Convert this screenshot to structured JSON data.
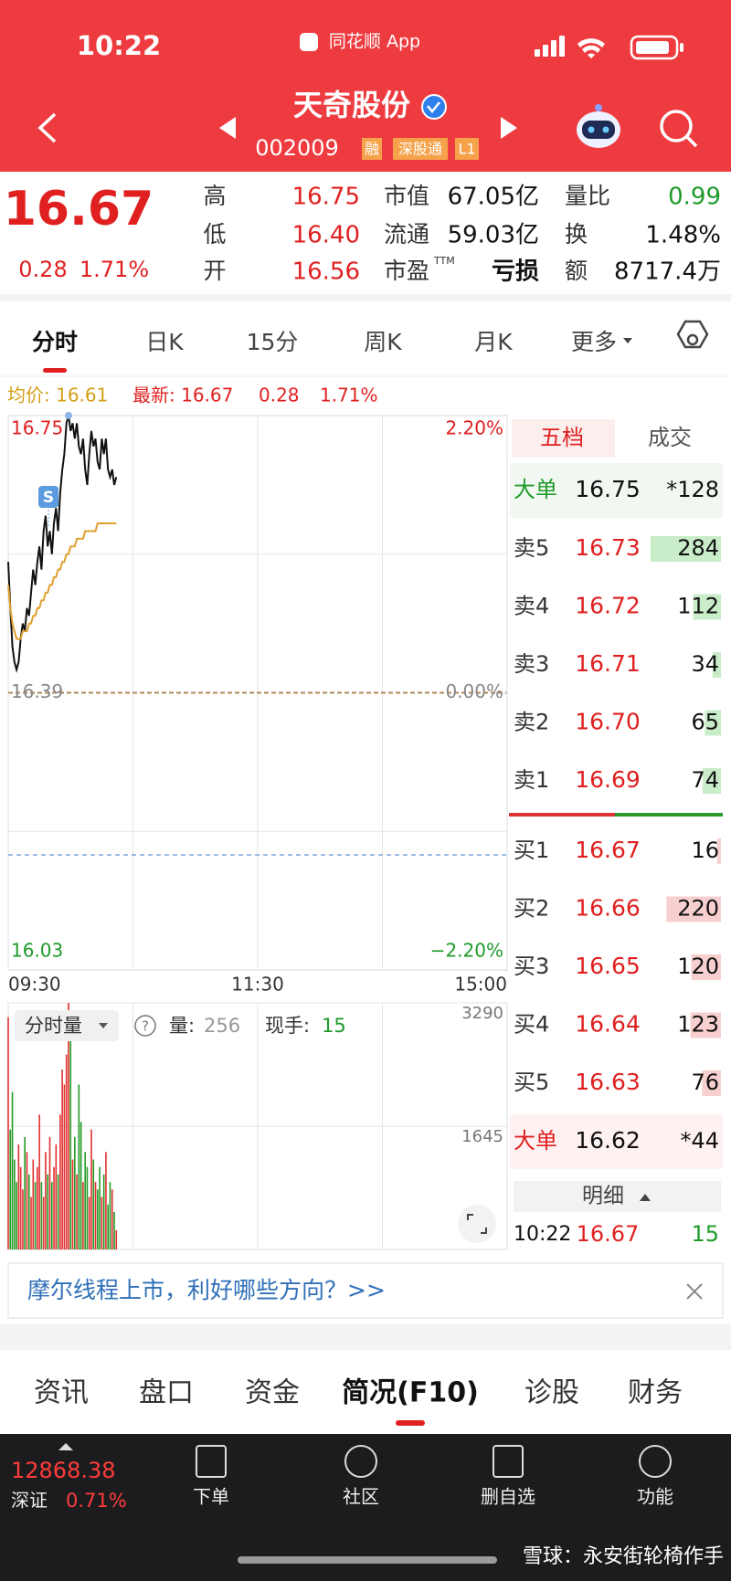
{
  "status_bar": {
    "time": "10:22",
    "app": "同花顺 App"
  },
  "header": {
    "name": "天奇股份",
    "code": "002009",
    "tags": [
      "融",
      "深股通",
      "L1"
    ]
  },
  "quote": {
    "price": "16.67",
    "change": "0.28",
    "change_pct": "1.71%",
    "pe_suffix": "TTM",
    "stats": [
      [
        "高",
        "16.75"
      ],
      [
        "低",
        "16.40"
      ],
      [
        "开",
        "16.56"
      ],
      [
        "市值",
        "67.05亿"
      ],
      [
        "流通",
        "59.03亿"
      ],
      [
        "市盈",
        "亏损"
      ],
      [
        "量比",
        "0.99"
      ],
      [
        "换",
        "1.48%"
      ],
      [
        "额",
        "8717.4万"
      ]
    ]
  },
  "tabs": {
    "items": [
      "分时",
      "日K",
      "15分",
      "周K",
      "月K",
      "更多"
    ],
    "active": 0
  },
  "info_line": {
    "avg": "均价: 16.61",
    "latest": "最新: 16.67",
    "change": "0.28",
    "change_pct": "1.71%"
  },
  "chart_data": [
    {
      "type": "line",
      "ylim": [
        16.03,
        16.75
      ],
      "yticks": [
        16.75,
        16.39,
        16.03
      ],
      "y2lim": [
        -2.2,
        2.2
      ],
      "y2ticks": [
        {
          "value": 2.2,
          "label": "2.20%"
        },
        {
          "value": 0,
          "label": "0.00%"
        },
        {
          "value": -2.2,
          "label": "−2.20%"
        }
      ],
      "xticks": [
        "09:30",
        "11:30",
        "15:00"
      ],
      "annotation": "S",
      "series": [
        {
          "color": "#111111",
          "values": [
            16.56,
            16.5,
            16.45,
            16.43,
            16.42,
            16.43,
            16.46,
            16.48,
            16.47,
            16.5,
            16.49,
            16.52,
            16.55,
            16.53,
            16.56,
            16.58,
            16.55,
            16.6,
            16.62,
            16.58,
            16.6,
            16.57,
            16.61,
            16.63,
            16.6,
            16.65,
            16.68,
            16.7,
            16.74,
            16.75,
            16.73,
            16.74,
            16.72,
            16.74,
            16.71,
            16.7,
            16.72,
            16.68,
            16.66,
            16.7,
            16.73,
            16.71,
            16.72,
            16.69,
            16.68,
            16.72,
            16.7,
            16.72,
            16.68,
            16.67,
            16.68,
            16.66,
            16.67
          ]
        },
        {
          "color": "#e0a030",
          "values": [
            16.53,
            16.5,
            16.48,
            16.47,
            16.46,
            16.46,
            16.46,
            16.47,
            16.47,
            16.47,
            16.48,
            16.48,
            16.49,
            16.49,
            16.5,
            16.5,
            16.51,
            16.51,
            16.52,
            16.52,
            16.53,
            16.53,
            16.54,
            16.54,
            16.55,
            16.55,
            16.56,
            16.56,
            16.57,
            16.57,
            16.58,
            16.58,
            16.58,
            16.59,
            16.59,
            16.59,
            16.59,
            16.6,
            16.6,
            16.6,
            16.6,
            16.6,
            16.6,
            16.61,
            16.61,
            16.61,
            16.61,
            16.61,
            16.61,
            16.61,
            16.61,
            16.61,
            16.61
          ]
        }
      ]
    },
    {
      "type": "bar",
      "ylim": [
        0,
        3290
      ],
      "yticks": [
        3290,
        1645
      ],
      "label": "分时量",
      "volume_label": "量:",
      "volume": "256",
      "hand_label": "现手:",
      "hand": "15",
      "values": [
        3100,
        1600,
        2100,
        1200,
        900,
        1400,
        1100,
        800,
        1500,
        1300,
        1000,
        700,
        1200,
        900,
        1100,
        1800,
        900,
        700,
        1300,
        1000,
        1500,
        900,
        1100,
        1400,
        1000,
        1800,
        2400,
        2200,
        2600,
        3290,
        2900,
        1200,
        1500,
        1000,
        2200,
        1700,
        900,
        1300,
        1100,
        700,
        1600,
        1200,
        900,
        800,
        1100,
        700,
        1000,
        1300,
        600,
        900,
        800,
        500,
        256
      ],
      "colors": [
        "#e03030",
        "#249a24",
        "#249a24",
        "#249a24",
        "#249a24",
        "#e03030",
        "#e03030",
        "#e03030",
        "#249a24",
        "#e03030",
        "#249a24",
        "#e03030",
        "#e03030",
        "#249a24",
        "#e03030",
        "#e03030",
        "#249a24",
        "#e03030",
        "#e03030",
        "#249a24",
        "#e03030",
        "#249a24",
        "#e03030",
        "#e03030",
        "#249a24",
        "#e03030",
        "#e03030",
        "#e03030",
        "#e03030",
        "#e03030",
        "#249a24",
        "#e03030",
        "#249a24",
        "#e03030",
        "#249a24",
        "#249a24",
        "#e03030",
        "#249a24",
        "#249a24",
        "#e03030",
        "#e03030",
        "#249a24",
        "#e03030",
        "#249a24",
        "#249a24",
        "#e03030",
        "#249a24",
        "#e03030",
        "#249a24",
        "#249a24",
        "#e03030",
        "#249a24",
        "#e03030"
      ]
    }
  ],
  "order_book": {
    "tabs": [
      "五档",
      "成交"
    ],
    "big_top": [
      "大单",
      "16.75",
      "*128"
    ],
    "asks": [
      [
        "卖5",
        "16.73",
        284
      ],
      [
        "卖4",
        "16.72",
        112
      ],
      [
        "卖3",
        "16.71",
        34
      ],
      [
        "卖2",
        "16.70",
        65
      ],
      [
        "卖1",
        "16.69",
        74
      ]
    ],
    "bids": [
      [
        "买1",
        "16.67",
        16
      ],
      [
        "买2",
        "16.66",
        220
      ],
      [
        "买3",
        "16.65",
        120
      ],
      [
        "买4",
        "16.64",
        123
      ],
      [
        "买5",
        "16.63",
        76
      ]
    ],
    "big_bottom": [
      "大单",
      "16.62",
      "*44"
    ],
    "detail": "明细",
    "last_trade": [
      "10:22",
      "16.67",
      "15"
    ]
  },
  "banner": "摩尔线程上市，利好哪些方向？>>",
  "bottom_tabs": {
    "items": [
      "资讯",
      "盘口",
      "资金",
      "简况(F10)",
      "诊股",
      "财务"
    ],
    "active": 3
  },
  "footer": {
    "index_value": "12868.38",
    "index_name": "深证",
    "index_pct": "0.71%",
    "nav": [
      "下单",
      "社区",
      "删自选",
      "功能"
    ],
    "watermark": "雪球：永安街轮椅作手"
  }
}
